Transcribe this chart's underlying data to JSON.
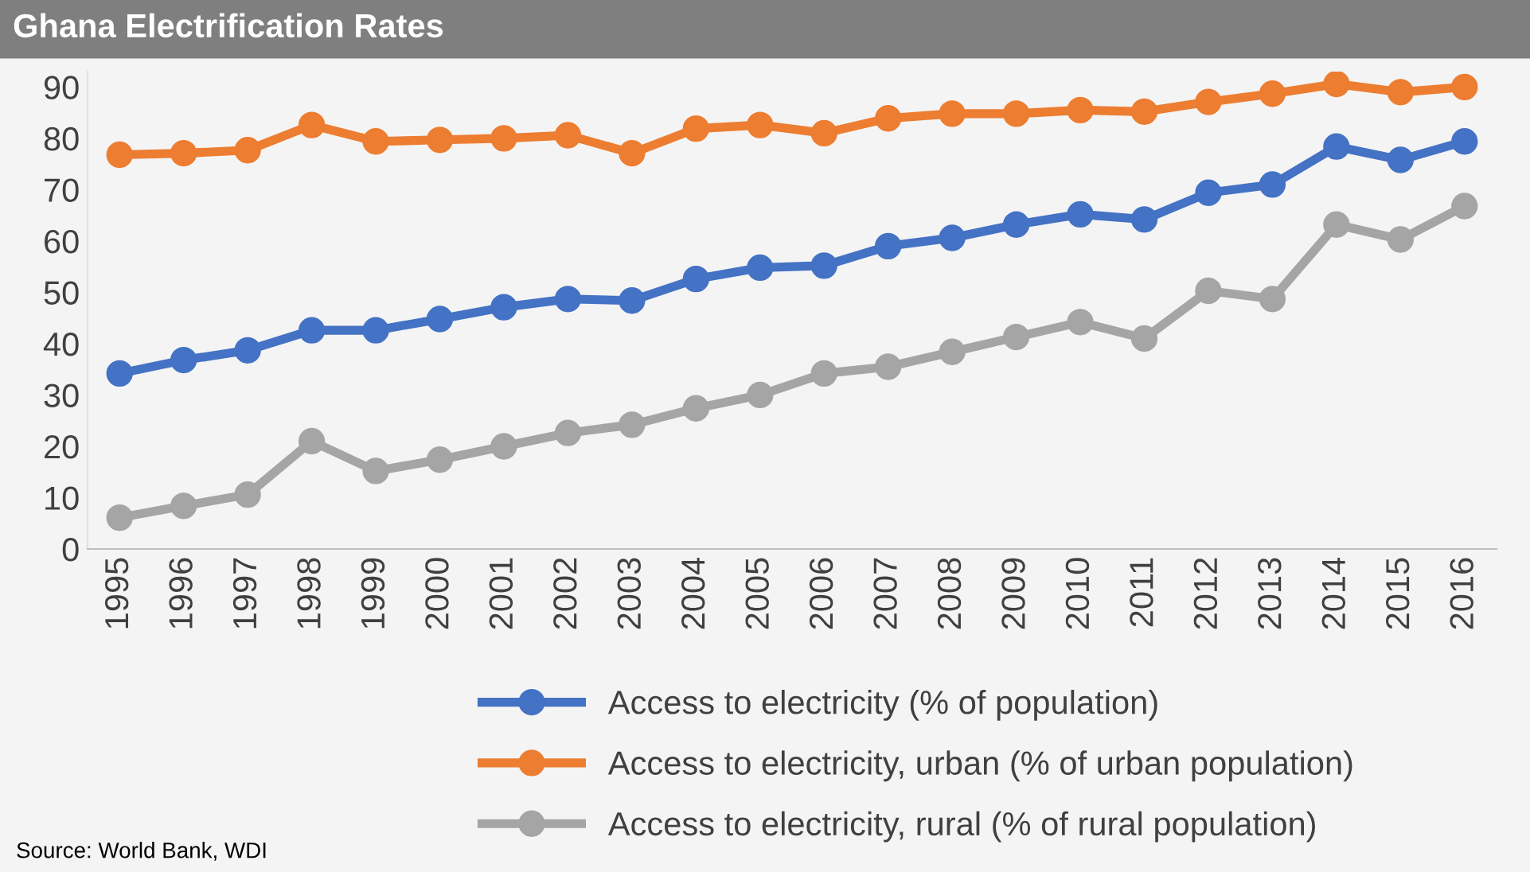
{
  "chart_data": {
    "type": "line",
    "title": "Ghana Electrification Rates",
    "categories": [
      "1995",
      "1996",
      "1997",
      "1998",
      "1999",
      "2000",
      "2001",
      "2002",
      "2003",
      "2004",
      "2005",
      "2006",
      "2007",
      "2008",
      "2009",
      "2010",
      "2011",
      "2012",
      "2013",
      "2014",
      "2015",
      "2016"
    ],
    "series": [
      {
        "name": "Access to electricity (% of population)",
        "color": "#4472c4",
        "values": [
          34.2,
          36.8,
          38.7,
          42.6,
          42.6,
          44.8,
          47.1,
          48.7,
          48.4,
          52.6,
          54.8,
          55.2,
          59.0,
          60.6,
          63.2,
          65.2,
          64.2,
          69.4,
          71.0,
          78.4,
          75.8,
          79.4
        ]
      },
      {
        "name": "Access to electricity, urban (% of urban population)",
        "color": "#ed7d31",
        "values": [
          76.8,
          77.1,
          77.7,
          82.6,
          79.4,
          79.7,
          80.0,
          80.6,
          77.1,
          81.9,
          82.6,
          81.0,
          83.9,
          84.8,
          84.8,
          85.5,
          85.2,
          87.1,
          88.7,
          90.6,
          89.0,
          90.0
        ]
      },
      {
        "name": "Access to electricity, rural (% of rural population)",
        "color": "#a5a5a5",
        "values": [
          6.1,
          8.4,
          10.6,
          21.0,
          15.2,
          17.4,
          20.0,
          22.6,
          24.2,
          27.4,
          30.0,
          34.2,
          35.5,
          38.4,
          41.3,
          44.2,
          41.0,
          50.3,
          48.7,
          63.2,
          60.3,
          66.8
        ]
      }
    ],
    "ylim": [
      0,
      93
    ],
    "yticks": [
      0,
      10,
      20,
      30,
      40,
      50,
      60,
      70,
      80,
      90
    ],
    "grid": false,
    "legend": "bottom",
    "marker": "circle",
    "line_style": "solid",
    "annotations": [
      "Source: World Bank, WDI"
    ]
  }
}
